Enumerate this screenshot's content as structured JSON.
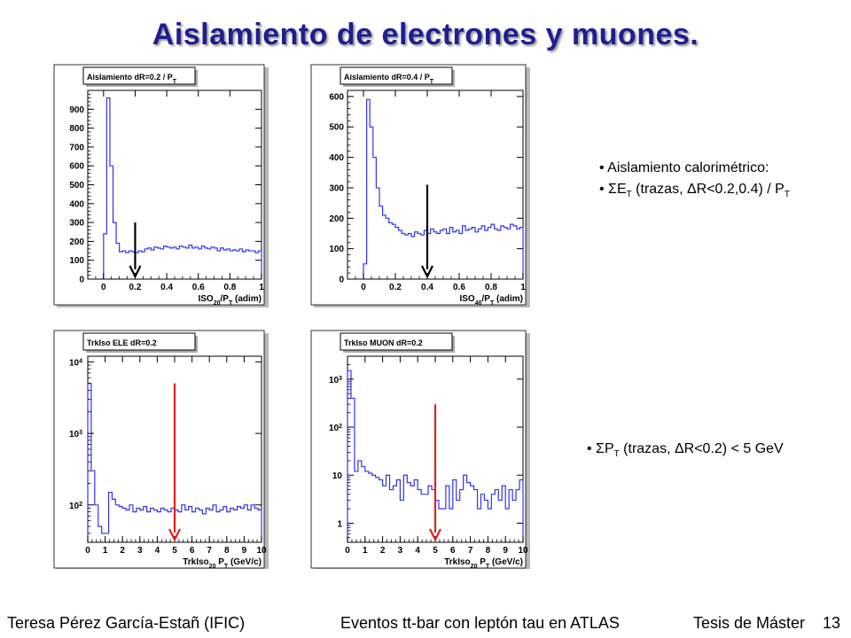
{
  "slide": {
    "title": "Aislamiento  de electrones y muones.",
    "page_number": "13"
  },
  "footer": {
    "author": "Teresa Pérez García-Estañ (IFIC)",
    "center": "Eventos tt-bar con leptón tau en ATLAS",
    "right": "Tesis de Máster"
  },
  "bullets_top": {
    "line1": "• Aislamiento calorimétrico:",
    "line2_pre": "• ΣE",
    "line2_sub": "T",
    "line2_post": " (trazas, ΔR<0.2,0.4) / P",
    "line2_sub2": "T"
  },
  "bullets_bottom": {
    "pre": "• ΣP",
    "sub": "T",
    "post": " (trazas, ΔR<0.2) < 5 GeV"
  },
  "colors": {
    "histogram": "#3333ee",
    "title": "#1f1f8f",
    "cut_arrow_black": "#000000",
    "cut_arrow_red": "#e02020"
  },
  "chart_data": [
    {
      "type": "histogram",
      "title": "Aislamiento dR=0.2 / P",
      "title_sub": "T",
      "xlabel": "ISO",
      "xlabel_sub": "20",
      "xlabel_mid": "/P",
      "xlabel_sub2": "T",
      "xlabel_post": " (adim)",
      "xlim": [
        -0.1,
        1.0
      ],
      "ylim": [
        0,
        1000
      ],
      "log": false,
      "xticks": [
        0,
        0.2,
        0.4,
        0.6,
        0.8,
        1
      ],
      "xtick_labels": [
        "0",
        "0.2",
        "0.4",
        "0.6",
        "0.8",
        "1"
      ],
      "yticks": [
        0,
        100,
        200,
        300,
        400,
        500,
        600,
        700,
        800,
        900
      ],
      "ytick_labels": [
        "0",
        "100",
        "200",
        "300",
        "400",
        "500",
        "600",
        "700",
        "800",
        "900"
      ],
      "bin_edges_start": 0,
      "bin_width": 0.02,
      "values": [
        240,
        960,
        600,
        300,
        190,
        145,
        150,
        140,
        150,
        145,
        140,
        150,
        145,
        160,
        165,
        155,
        170,
        165,
        160,
        175,
        170,
        165,
        170,
        160,
        175,
        170,
        165,
        180,
        165,
        170,
        160,
        175,
        165,
        160,
        170,
        165,
        150,
        165,
        155,
        160,
        150,
        155,
        150,
        160,
        145,
        155,
        150,
        150,
        140,
        150
      ],
      "cut": {
        "x": 0.2,
        "y_top": 300,
        "color": "black"
      }
    },
    {
      "type": "histogram",
      "title": "Aislamiento dR=0.4 / P",
      "title_sub": "T",
      "xlabel": "ISO",
      "xlabel_sub": "40",
      "xlabel_mid": "/P",
      "xlabel_sub2": "T",
      "xlabel_post": " (adim)",
      "xlim": [
        -0.1,
        1.0
      ],
      "ylim": [
        0,
        620
      ],
      "log": false,
      "xticks": [
        0,
        0.2,
        0.4,
        0.6,
        0.8,
        1
      ],
      "xtick_labels": [
        "0",
        "0.2",
        "0.4",
        "0.6",
        "0.8",
        "1"
      ],
      "yticks": [
        0,
        100,
        200,
        300,
        400,
        500,
        600
      ],
      "ytick_labels": [
        "0",
        "100",
        "200",
        "300",
        "400",
        "500",
        "600"
      ],
      "bin_edges_start": 0,
      "bin_width": 0.02,
      "values": [
        50,
        590,
        500,
        400,
        300,
        240,
        210,
        200,
        185,
        180,
        170,
        160,
        150,
        145,
        150,
        140,
        155,
        150,
        145,
        160,
        150,
        165,
        155,
        150,
        160,
        165,
        150,
        170,
        155,
        160,
        150,
        175,
        160,
        165,
        170,
        155,
        165,
        175,
        160,
        170,
        180,
        165,
        160,
        175,
        170,
        165,
        180,
        175,
        165,
        170
      ],
      "cut": {
        "x": 0.4,
        "y_top": 310,
        "color": "black"
      }
    },
    {
      "type": "histogram",
      "title": "TrkIso ELE dR=0.2",
      "title_sub": "",
      "xlabel": "TrkIso",
      "xlabel_sub": "20",
      "xlabel_mid": " P",
      "xlabel_sub2": "T",
      "xlabel_post": " (GeV/c)",
      "xlim": [
        0,
        10
      ],
      "ylim": [
        30,
        12000
      ],
      "log": true,
      "xticks": [
        0,
        1,
        2,
        3,
        4,
        5,
        6,
        7,
        8,
        9,
        10
      ],
      "xtick_labels": [
        "0",
        "1",
        "2",
        "3",
        "4",
        "5",
        "6",
        "7",
        "8",
        "9",
        "10"
      ],
      "yticks": [
        100,
        1000,
        10000
      ],
      "ytick_labels": [
        "10^2",
        "10^3",
        "10^4"
      ],
      "bin_edges_start": 0,
      "bin_width": 0.2,
      "values": [
        5000,
        300,
        100,
        50,
        40,
        40,
        150,
        120,
        100,
        95,
        90,
        85,
        100,
        80,
        90,
        85,
        95,
        80,
        90,
        85,
        80,
        90,
        85,
        80,
        90,
        85,
        80,
        100,
        85,
        95,
        80,
        90,
        85,
        75,
        90,
        85,
        100,
        80,
        85,
        95,
        80,
        90,
        85,
        95,
        90,
        100,
        85,
        100,
        90,
        85
      ],
      "cut": {
        "x": 5,
        "y_top": 5000,
        "color": "red"
      }
    },
    {
      "type": "histogram",
      "title": "TrkIso MUON dR=0.2",
      "title_sub": "",
      "xlabel": "TrkIso",
      "xlabel_sub": "20",
      "xlabel_mid": " P",
      "xlabel_sub2": "T",
      "xlabel_post": " (GeV/c)",
      "xlim": [
        0,
        10
      ],
      "ylim": [
        0.4,
        3000
      ],
      "log": true,
      "xticks": [
        0,
        1,
        2,
        3,
        4,
        5,
        6,
        7,
        8,
        9,
        10
      ],
      "xtick_labels": [
        "0",
        "1",
        "2",
        "3",
        "4",
        "5",
        "6",
        "7",
        "8",
        "9",
        "10"
      ],
      "yticks": [
        1,
        10,
        100,
        1000
      ],
      "ytick_labels": [
        "1",
        "10",
        "10^2",
        "10^3"
      ],
      "bin_edges_start": 0,
      "bin_width": 0.2,
      "values": [
        1500,
        400,
        12,
        20,
        15,
        12,
        11,
        10,
        9,
        8,
        6,
        10,
        5,
        6,
        8,
        3,
        10,
        7,
        6,
        8,
        5,
        4,
        4,
        6,
        5,
        3,
        2,
        2,
        6,
        2,
        8,
        3,
        5,
        10,
        7,
        6,
        5,
        2,
        4,
        3,
        2,
        4,
        5,
        3,
        6,
        2,
        5,
        3,
        5,
        8
      ],
      "cut": {
        "x": 5,
        "y_top": 300,
        "color": "red"
      }
    }
  ]
}
